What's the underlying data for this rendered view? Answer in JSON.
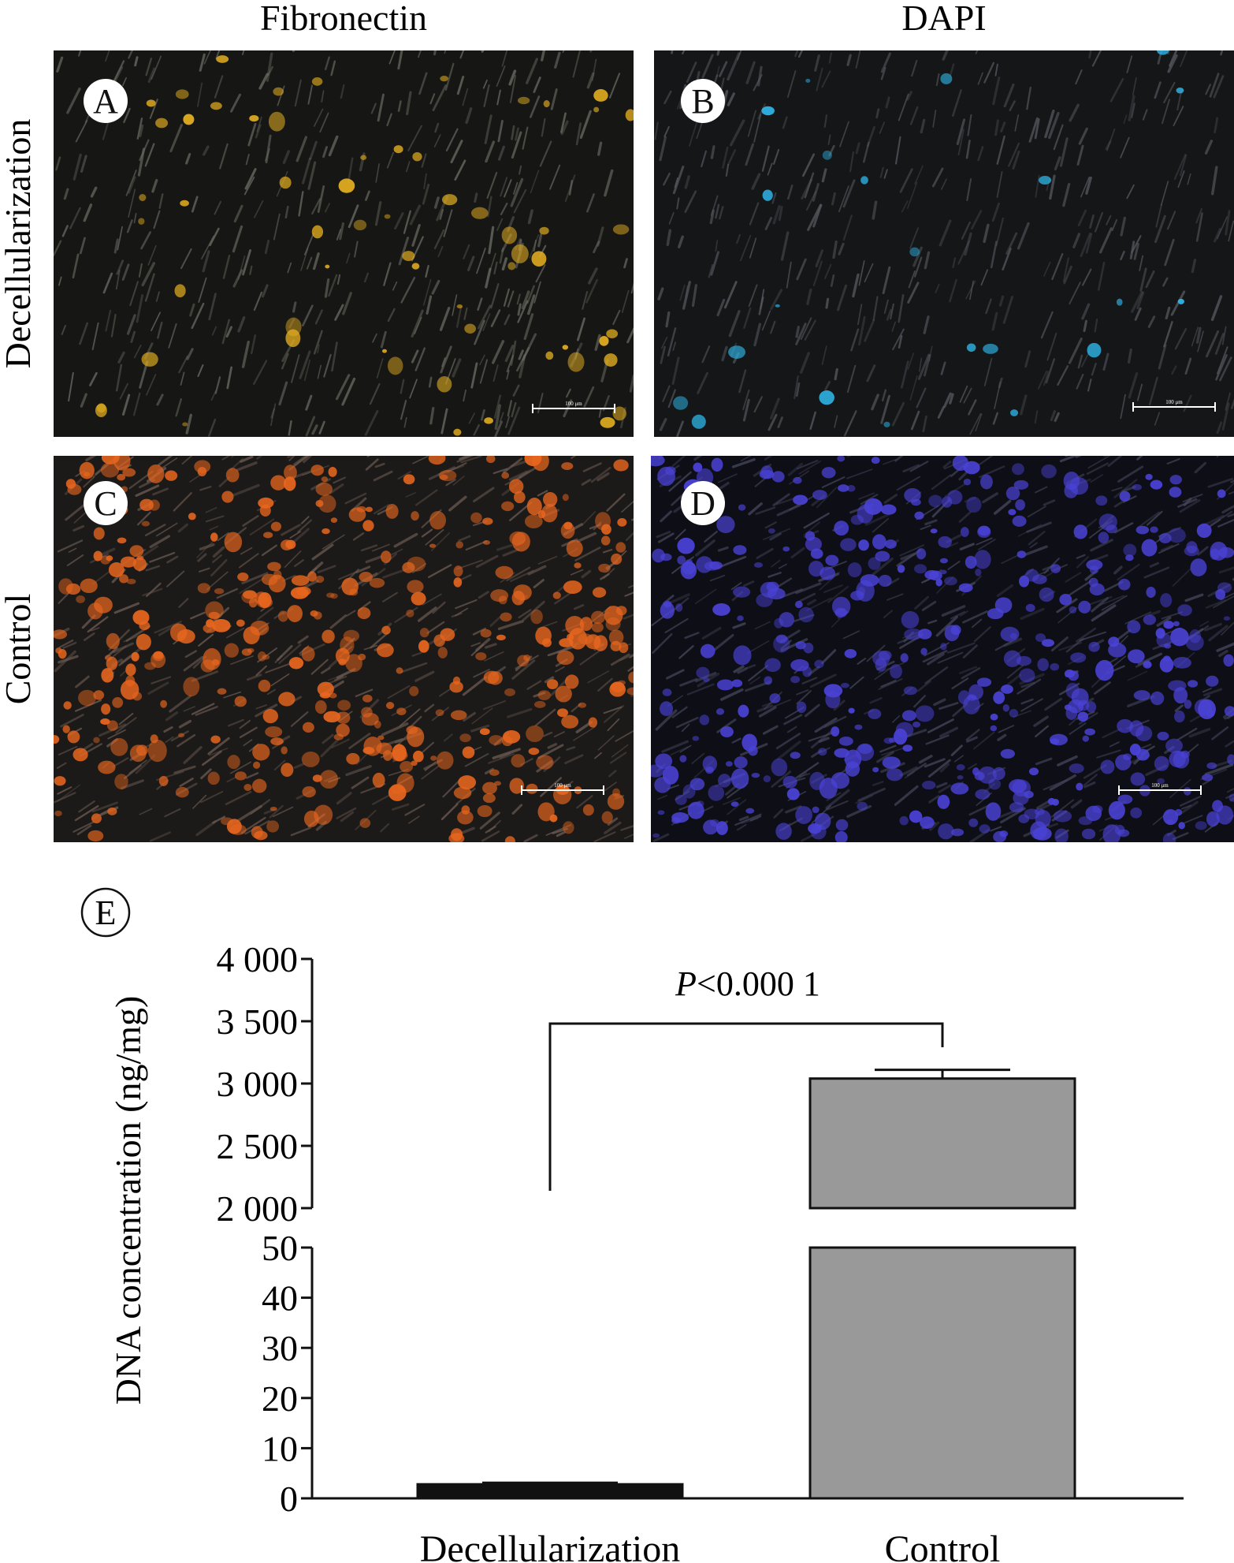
{
  "column_headers": [
    "Fibronectin",
    "DAPI"
  ],
  "row_headers": [
    "Decellularization",
    "Control"
  ],
  "panels": [
    {
      "letter": "A",
      "row": "Decellularization",
      "column": "Fibronectin",
      "scale_bar": "100 μm",
      "base_color": "#161614",
      "fiber_color": "#6a6a62",
      "spot_color": "#e6b020",
      "spot_count": 60
    },
    {
      "letter": "B",
      "row": "Decellularization",
      "column": "DAPI",
      "scale_bar": "100 μm",
      "base_color": "#141618",
      "fiber_color": "#56585e",
      "spot_color": "#2fb4e6",
      "spot_count": 22
    },
    {
      "letter": "C",
      "row": "Control",
      "column": "Fibronectin",
      "scale_bar": "100 μm",
      "base_color": "#1c1a18",
      "fiber_color": "#6b5a52",
      "spot_color": "#e8661e",
      "spot_count": 380
    },
    {
      "letter": "D",
      "row": "Control",
      "column": "DAPI",
      "scale_bar": "100 μm",
      "base_color": "#0e0e16",
      "fiber_color": "#44465a",
      "spot_color": "#4a42d6",
      "spot_count": 420
    }
  ],
  "chart_data": {
    "type": "bar",
    "panel_letter": "E",
    "categories": [
      "Decellularization",
      "Control"
    ],
    "values": [
      2.8,
      3040
    ],
    "error": [
      0.3,
      70
    ],
    "bar_colors": [
      "#111111",
      "#999999"
    ],
    "title": "",
    "xlabel": "",
    "ylabel": "DNA concentration (ng/mg)",
    "axis_break": {
      "lower": {
        "range": [
          0,
          50
        ],
        "ticks": [
          0,
          10,
          20,
          30,
          40,
          50
        ],
        "tick_labels": [
          "0",
          "10",
          "20",
          "30",
          "40",
          "50"
        ]
      },
      "upper": {
        "range": [
          2000,
          4000
        ],
        "ticks": [
          2000,
          2500,
          3000,
          3500,
          4000
        ],
        "tick_labels": [
          "2 000",
          "2 500",
          "3 000",
          "3 500",
          "4 000"
        ]
      }
    },
    "significance": {
      "label_italic": "P",
      "label_rest": "<0.000 1",
      "between": [
        "Decellularization",
        "Control"
      ]
    },
    "grid": false,
    "legend": "none"
  }
}
